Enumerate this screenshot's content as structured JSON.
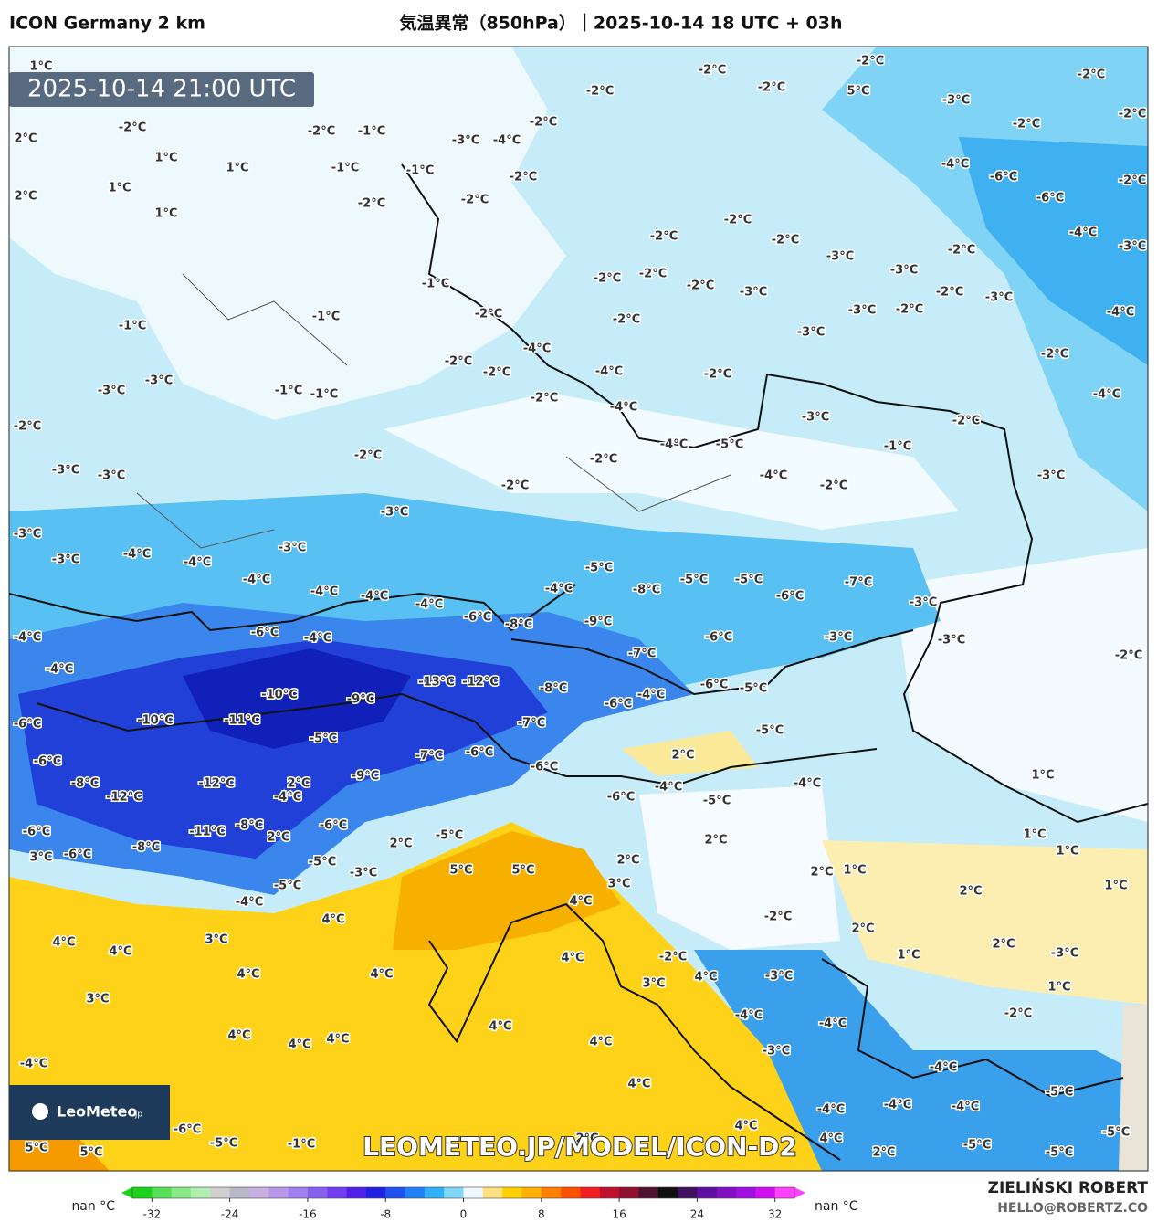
{
  "header": {
    "model": "ICON Germany 2 km",
    "title": "気温異常（850hPa）｜2025-10-14 18 UTC + 03h"
  },
  "timestamp": "2025-10-14 21:00 UTC",
  "logo": {
    "name": "LeoMeteo",
    "suffix": ".jp"
  },
  "watermark": "LEOMETEO.JP/MODEL/ICON-D2",
  "map": {
    "labels": [
      "1°C",
      "-2°C",
      "2°C",
      "1°C",
      "1°C",
      "1°C",
      "2°C",
      "1°C",
      "-2°C",
      "-1°C",
      "-1°C",
      "-1°C",
      "-2°C",
      "-2°C",
      "-3°C",
      "-4°C",
      "-2°C",
      "-2°C",
      "-2°C",
      "-2°C",
      "-2°C",
      "5°C",
      "-3°C",
      "-2°C",
      "-2°C",
      "-2°C",
      "-4°C",
      "-6°C",
      "-6°C",
      "-2°C",
      "-2°C",
      "-2°C",
      "-2°C",
      "-2°C",
      "-2°C",
      "-2°C",
      "-2°C",
      "-3°C",
      "-3°C",
      "-2°C",
      "-4°C",
      "-3°C",
      "-3°C",
      "-2°C",
      "-3°C",
      "-3°C",
      "-2°C",
      "-4°C",
      "-1°C",
      "-2°C",
      "-2°C",
      "-3°C",
      "-2°C",
      "-1°C",
      "-1°C",
      "-4°C",
      "-2°C",
      "-2°C",
      "-4°C",
      "-2°C",
      "-4°C",
      "-3°C",
      "-3°C",
      "-1°C",
      "-1°C",
      "-2°C",
      "-4°C",
      "-3°C",
      "-2°C",
      "-2°C",
      "-4°C",
      "-5°C",
      "-1°C",
      "-2°C",
      "-2°C",
      "-3°C",
      "-3°C",
      "-2°C",
      "-4°C",
      "-2°C",
      "-3°C",
      "-3°C",
      "-3°C",
      "-4°C",
      "-3°C",
      "-4°C",
      "-3°C",
      "-4°C",
      "-5°C",
      "-4°C",
      "-8°C",
      "-5°C",
      "-5°C",
      "-7°C",
      "-6°C",
      "-3°C",
      "-4°C",
      "-4°C",
      "-4°C",
      "-6°C",
      "-8°C",
      "-9°C",
      "-6°C",
      "-4°C",
      "-6°C",
      "-3°C",
      "-3°C",
      "-2°C",
      "-7°C",
      "-4°C",
      "-4°C",
      "-10°C",
      "-13°C",
      "-12°C",
      "-8°C",
      "-6°C",
      "-5°C",
      "-9°C",
      "-4°C",
      "-6°C",
      "-10°C",
      "-11°C",
      "-7°C",
      "-5°C",
      "-6°C",
      "-5°C",
      "2°C",
      "-7°C",
      "-6°C",
      "-6°C",
      "-8°C",
      "-12°C",
      "2°C",
      "-9°C",
      "-6°C",
      "1°C",
      "-4°C",
      "-4°C",
      "-12°C",
      "-4°C",
      "-6°C",
      "-5°C",
      "-6°C",
      "-11°C",
      "-8°C",
      "2°C",
      "-5°C",
      "1°C",
      "1°C",
      "-8°C",
      "2°C",
      "2°C",
      "-6°C",
      "3°C",
      "-6°C",
      "2°C",
      "2°C",
      "1°C",
      "-5°C",
      "-3°C",
      "5°C",
      "5°C",
      "3°C",
      "-5°C",
      "1°C",
      "2°C",
      "-4°C",
      "4°C",
      "-2°C",
      "4°C",
      "3°C",
      "2°C",
      "4°C",
      "4°C",
      "2°C",
      "4°C",
      "-2°C",
      "1°C",
      "-3°C",
      "4°C",
      "4°C",
      "4°C",
      "-3°C",
      "3°C",
      "1°C",
      "3°C",
      "-4°C",
      "-2°C",
      "4°C",
      "-4°C",
      "4°C",
      "4°C",
      "4°C",
      "4°C",
      "-3°C",
      "-4°C",
      "-4°C",
      "4°C",
      "-5°C",
      "-4°C",
      "-4°C",
      "-4°C",
      "4°C",
      "4°C",
      "-6°C",
      "-5°C",
      "-1°C",
      "2°C",
      "-5°C",
      "-5°C",
      "2°C",
      "5°C",
      "5°C",
      "-5°C"
    ]
  },
  "colorbar": {
    "lim": [
      -34,
      34
    ],
    "ticks": [
      -32,
      -24,
      -16,
      -8,
      0,
      8,
      16,
      24,
      32
    ],
    "nan_left": "nan °C",
    "nan_right": "nan °C",
    "colors": [
      "#1cd31c",
      "#55e055",
      "#88e888",
      "#b0eeb0",
      "#d0d0d0",
      "#b8b8c8",
      "#c8b0e0",
      "#b898e8",
      "#a080f0",
      "#8860f0",
      "#7040f0",
      "#5020e8",
      "#2020e0",
      "#2050f0",
      "#2080f8",
      "#30b0f8",
      "#80d8f8",
      "#f0f8ff",
      "#ffe080",
      "#ffd000",
      "#ffb000",
      "#ff8000",
      "#ff5000",
      "#f02020",
      "#c01030",
      "#901030",
      "#501030",
      "#101010",
      "#401060",
      "#6010a0",
      "#8010c0",
      "#a010e0",
      "#d010f0",
      "#ff40ff"
    ]
  },
  "footer": {
    "author": "ZIELIŃSKI ROBERT",
    "email": "HELLO@ROBERTZ.CO"
  }
}
